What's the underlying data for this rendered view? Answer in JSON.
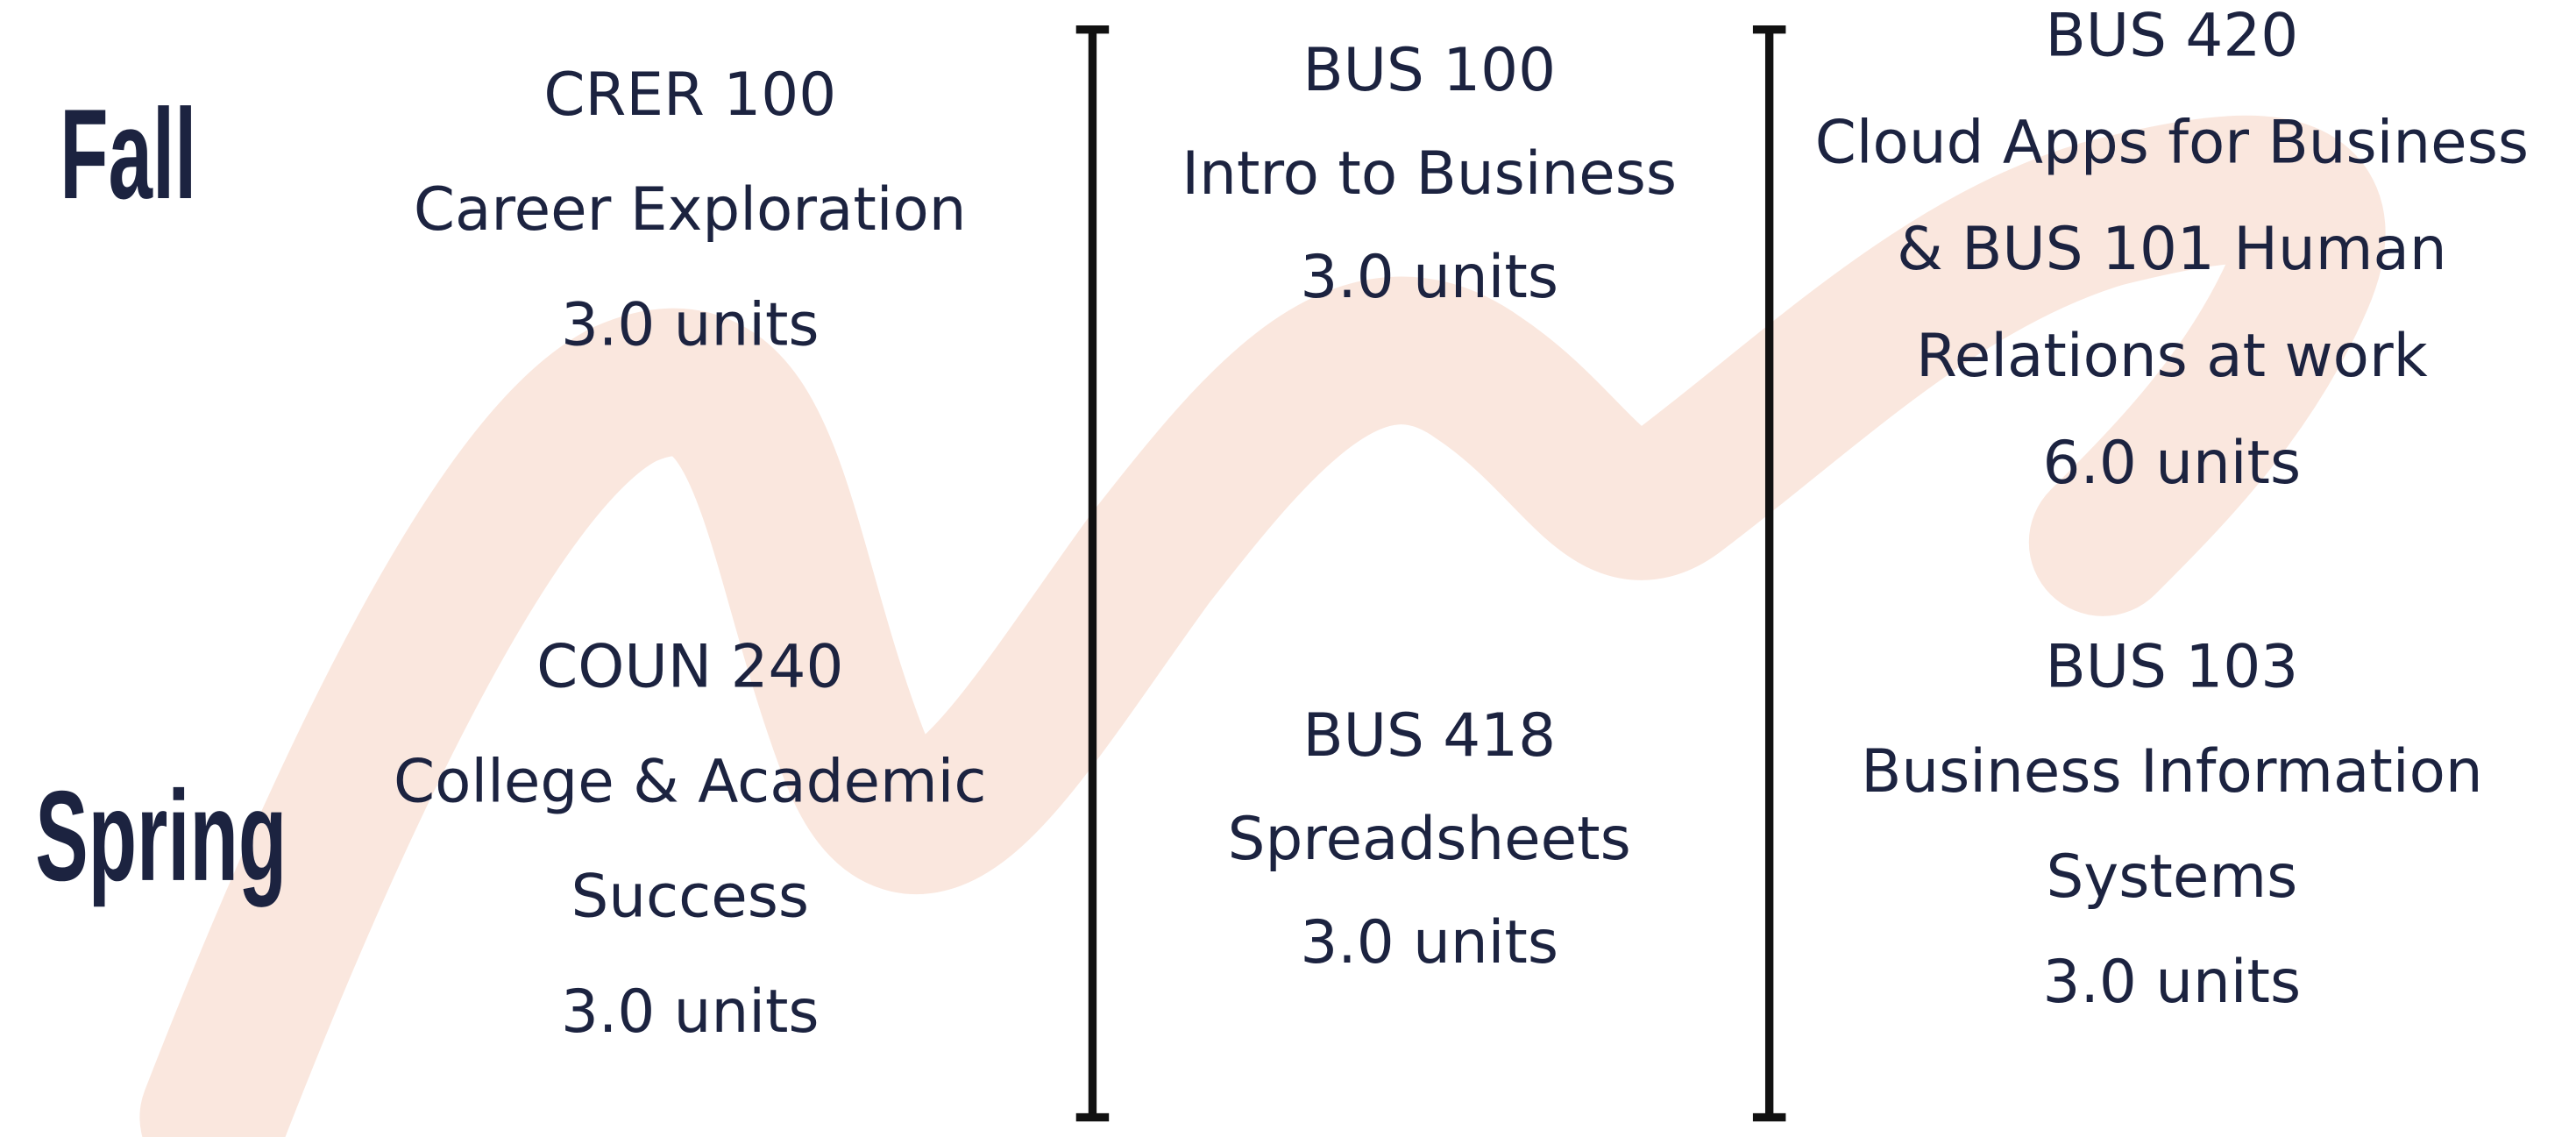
{
  "terms": [
    "Fall",
    "Spring"
  ],
  "columns": [
    {
      "fall": {
        "lines": [
          "CRER 100",
          "Career Exploration",
          "3.0 units"
        ]
      },
      "spring": {
        "lines": [
          "COUN 240",
          "College & Academic",
          "Success",
          "3.0 units"
        ]
      }
    },
    {
      "fall": {
        "lines": [
          "BUS 100",
          "Intro to Business",
          "3.0 units"
        ]
      },
      "spring": {
        "lines": [
          "BUS 418",
          "Spreadsheets",
          "3.0 units"
        ]
      }
    },
    {
      "fall": {
        "lines": [
          "BUS 420",
          "Cloud Apps for Business",
          "& BUS 101 Human",
          "Relations at work",
          "6.0 units"
        ]
      },
      "spring": {
        "lines": [
          "BUS 103",
          "Business Information",
          "Systems",
          "3.0 units"
        ]
      }
    }
  ]
}
